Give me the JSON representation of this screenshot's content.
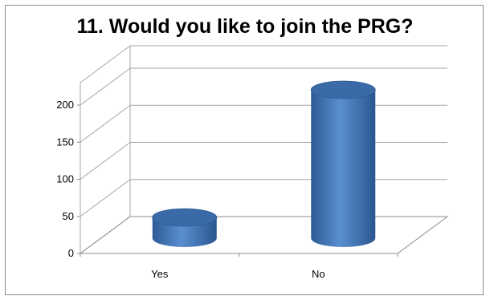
{
  "chart_data": {
    "type": "bar",
    "style": "3d-cylinder",
    "title": "11. Would you like to join the PRG?",
    "categories": [
      "Yes",
      "No"
    ],
    "series": [
      {
        "values": [
          28,
          200
        ]
      }
    ],
    "ylim": [
      0,
      200
    ],
    "yticks": [
      0,
      50,
      100,
      150,
      200
    ],
    "grid": true,
    "legend": "none",
    "colors": {
      "bar": "#4a7ebb",
      "bar_top": "#3a6aa8",
      "grid": "#a6a6a6",
      "floor": "#8c8c8c"
    }
  }
}
